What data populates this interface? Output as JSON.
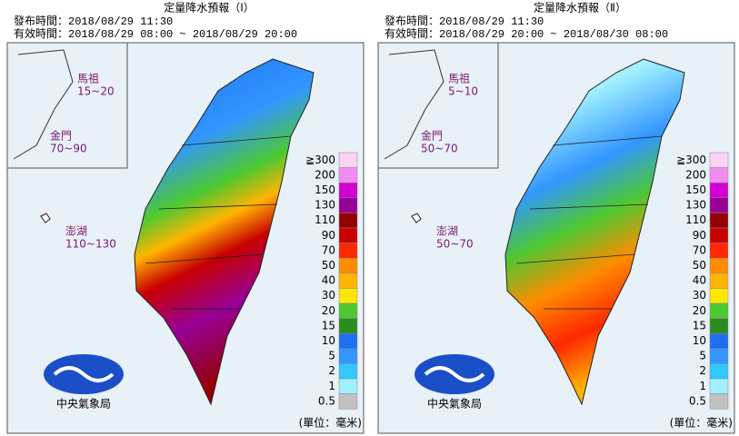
{
  "panels": [
    {
      "title": "定量降水預報（Ⅰ）",
      "issued": "發布時間：2018/08/29 11:30",
      "valid": "有效時間：2018/08/29 08:00 ~ 2018/08/29 20:00",
      "islands": [
        {
          "name": "馬祖",
          "range": "15~20"
        },
        {
          "name": "金門",
          "range": "70~90"
        },
        {
          "name": "澎湖",
          "range": "110~130"
        }
      ]
    },
    {
      "title": "定量降水預報（Ⅱ）",
      "issued": "發布時間：2018/08/29 11:30",
      "valid": "有效時間：2018/08/29 20:00 ~ 2018/08/30 08:00",
      "islands": [
        {
          "name": "馬祖",
          "range": "5~10"
        },
        {
          "name": "金門",
          "range": "50~70"
        },
        {
          "name": "澎湖",
          "range": "50~70"
        }
      ]
    }
  ],
  "legend": {
    "labels": [
      "≧300",
      "200",
      "150",
      "130",
      "110",
      "90",
      "70",
      "50",
      "40",
      "30",
      "20",
      "15",
      "10",
      "5",
      "2",
      "1",
      "0.5"
    ],
    "colors": [
      "#fcd2f6",
      "#f08cf0",
      "#d200d2",
      "#960096",
      "#960000",
      "#c80000",
      "#ff2800",
      "#ff8c00",
      "#ffb400",
      "#ffe600",
      "#4cc832",
      "#2a8c1e",
      "#1e6ef0",
      "#3296ff",
      "#32c8ff",
      "#a0f0ff",
      "#c0c0c0"
    ]
  },
  "logo": "中央氣象局",
  "unit": "(單位：毫米)"
}
